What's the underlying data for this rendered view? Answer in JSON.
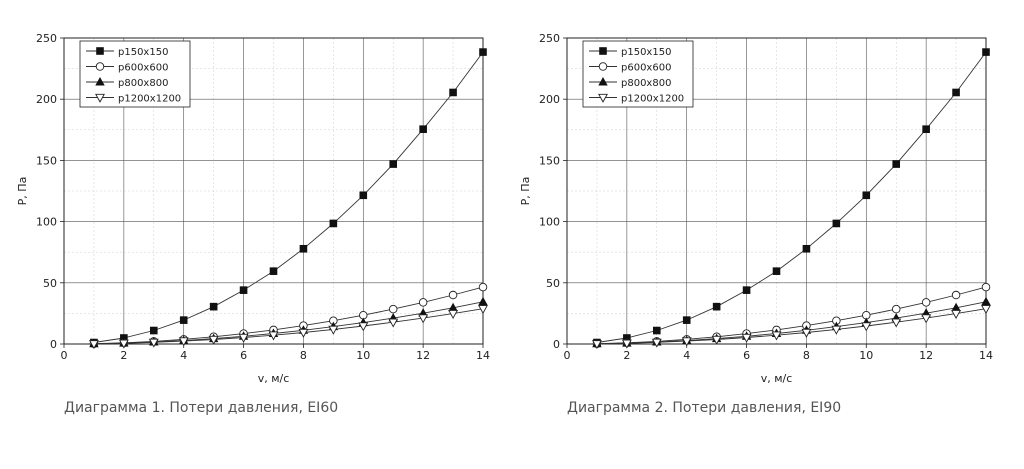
{
  "chart_data": [
    {
      "type": "line",
      "caption": "Диаграмма 1. Потери давления, EI60",
      "xlabel": "v, м/с",
      "ylabel": "P, Па",
      "xlim": [
        0,
        14
      ],
      "ylim": [
        0,
        250
      ],
      "xticks": [
        0,
        2,
        4,
        6,
        8,
        10,
        12,
        14
      ],
      "yticks": [
        0,
        50,
        100,
        150,
        200,
        250
      ],
      "grid": true,
      "legend_position": "top-left",
      "x": [
        1,
        2,
        3,
        4,
        5,
        6,
        7,
        8,
        9,
        10,
        11,
        12,
        13,
        14
      ],
      "series": [
        {
          "name": "p150x150",
          "marker": "filled-square",
          "values": [
            1.2,
            4.9,
            11,
            19.5,
            30.5,
            44,
            59.5,
            77.8,
            98.5,
            121.5,
            147,
            175.5,
            205.5,
            238.5
          ]
        },
        {
          "name": "p600x600",
          "marker": "open-circle",
          "values": [
            0.24,
            0.95,
            2.1,
            3.8,
            5.9,
            8.5,
            11.5,
            15,
            19,
            23.5,
            28.5,
            34,
            40,
            46.5
          ]
        },
        {
          "name": "p800x800",
          "marker": "filled-triangle-up",
          "values": [
            0.18,
            0.7,
            1.6,
            2.8,
            4.4,
            6.3,
            8.6,
            11.2,
            14.2,
            17.5,
            21.2,
            25.2,
            29.6,
            34.5
          ]
        },
        {
          "name": "p1200x1200",
          "marker": "open-triangle-down",
          "values": [
            0.15,
            0.6,
            1.35,
            2.4,
            3.7,
            5.3,
            7.2,
            9.4,
            11.9,
            14.7,
            17.8,
            21.2,
            24.8,
            28.8
          ]
        }
      ]
    },
    {
      "type": "line",
      "caption": "Диаграмма 2. Потери давления, EI90",
      "xlabel": "v, м/с",
      "ylabel": "P, Па",
      "xlim": [
        0,
        14
      ],
      "ylim": [
        0,
        250
      ],
      "xticks": [
        0,
        2,
        4,
        6,
        8,
        10,
        12,
        14
      ],
      "yticks": [
        0,
        50,
        100,
        150,
        200,
        250
      ],
      "grid": true,
      "legend_position": "top-left",
      "x": [
        1,
        2,
        3,
        4,
        5,
        6,
        7,
        8,
        9,
        10,
        11,
        12,
        13,
        14
      ],
      "series": [
        {
          "name": "p150x150",
          "marker": "filled-square",
          "values": [
            1.2,
            4.9,
            11,
            19.5,
            30.5,
            44,
            59.5,
            77.8,
            98.5,
            121.5,
            147,
            175.5,
            205.5,
            238.5
          ]
        },
        {
          "name": "p600x600",
          "marker": "open-circle",
          "values": [
            0.24,
            0.95,
            2.1,
            3.8,
            5.9,
            8.5,
            11.5,
            15,
            19,
            23.5,
            28.5,
            34,
            40,
            46.5
          ]
        },
        {
          "name": "p800x800",
          "marker": "filled-triangle-up",
          "values": [
            0.18,
            0.7,
            1.6,
            2.8,
            4.4,
            6.3,
            8.6,
            11.2,
            14.2,
            17.5,
            21.2,
            25.2,
            29.6,
            34.5
          ]
        },
        {
          "name": "p1200x1200",
          "marker": "open-triangle-down",
          "values": [
            0.15,
            0.6,
            1.35,
            2.4,
            3.7,
            5.3,
            7.2,
            9.4,
            11.9,
            14.7,
            17.8,
            21.2,
            24.8,
            28.8
          ]
        }
      ]
    }
  ]
}
